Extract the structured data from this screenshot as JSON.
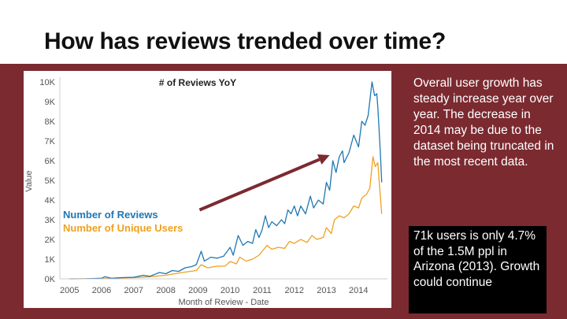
{
  "slide": {
    "title": "How has reviews trended over time?",
    "description": "Overall user growth has steady increase year over year. The decrease in 2014 may be due to the dataset being truncated in the most recent data.",
    "note": "71k users is only 4.7% of the 1.5M ppl in Arizona (2013). Growth could continue",
    "colors": {
      "band": "#7b2a30",
      "arrow": "#7b2a30",
      "note_bg": "#000000"
    }
  },
  "chart_data": {
    "type": "line",
    "title": "# of Reviews YoY",
    "xlabel": "Month of Review - Date",
    "ylabel": "Value",
    "xlim": [
      2004.7,
      2014.9
    ],
    "ylim": [
      0,
      10000
    ],
    "x_ticks": [
      "2005",
      "2006",
      "2007",
      "2008",
      "2009",
      "2010",
      "2011",
      "2012",
      "2013",
      "2014"
    ],
    "y_ticks": [
      {
        "value": 0,
        "label": "0K"
      },
      {
        "value": 1000,
        "label": "1K"
      },
      {
        "value": 2000,
        "label": "2K"
      },
      {
        "value": 3000,
        "label": "3K"
      },
      {
        "value": 4000,
        "label": "4K"
      },
      {
        "value": 5000,
        "label": "5K"
      },
      {
        "value": 6000,
        "label": "6K"
      },
      {
        "value": 7000,
        "label": "7K"
      },
      {
        "value": 8000,
        "label": "8K"
      },
      {
        "value": 9000,
        "label": "9K"
      },
      {
        "value": 10000,
        "label": "10K"
      }
    ],
    "grid": false,
    "legend_position": "middle-left",
    "series": [
      {
        "name": "Number of Reviews",
        "color": "#1f77b4",
        "points": [
          [
            2005.0,
            0
          ],
          [
            2005.5,
            5
          ],
          [
            2006.0,
            30
          ],
          [
            2006.1,
            110
          ],
          [
            2006.3,
            30
          ],
          [
            2006.6,
            60
          ],
          [
            2007.0,
            80
          ],
          [
            2007.3,
            180
          ],
          [
            2007.5,
            130
          ],
          [
            2007.8,
            320
          ],
          [
            2008.0,
            260
          ],
          [
            2008.2,
            420
          ],
          [
            2008.4,
            380
          ],
          [
            2008.6,
            560
          ],
          [
            2008.8,
            620
          ],
          [
            2008.95,
            720
          ],
          [
            2009.1,
            1400
          ],
          [
            2009.2,
            900
          ],
          [
            2009.4,
            1100
          ],
          [
            2009.6,
            1050
          ],
          [
            2009.8,
            1150
          ],
          [
            2010.0,
            1600
          ],
          [
            2010.1,
            1200
          ],
          [
            2010.25,
            2200
          ],
          [
            2010.4,
            1700
          ],
          [
            2010.55,
            1900
          ],
          [
            2010.7,
            1800
          ],
          [
            2010.8,
            2500
          ],
          [
            2010.9,
            2100
          ],
          [
            2011.0,
            2500
          ],
          [
            2011.1,
            3200
          ],
          [
            2011.2,
            2600
          ],
          [
            2011.3,
            2900
          ],
          [
            2011.45,
            2700
          ],
          [
            2011.6,
            3000
          ],
          [
            2011.7,
            2800
          ],
          [
            2011.8,
            3500
          ],
          [
            2011.9,
            3300
          ],
          [
            2012.0,
            3700
          ],
          [
            2012.1,
            3200
          ],
          [
            2012.2,
            3700
          ],
          [
            2012.35,
            3300
          ],
          [
            2012.5,
            4200
          ],
          [
            2012.6,
            3600
          ],
          [
            2012.75,
            4000
          ],
          [
            2012.9,
            3800
          ],
          [
            2013.0,
            4900
          ],
          [
            2013.1,
            4500
          ],
          [
            2013.2,
            6000
          ],
          [
            2013.3,
            5400
          ],
          [
            2013.4,
            6200
          ],
          [
            2013.5,
            6500
          ],
          [
            2013.55,
            5900
          ],
          [
            2013.7,
            6400
          ],
          [
            2013.85,
            7300
          ],
          [
            2014.0,
            6700
          ],
          [
            2014.1,
            8000
          ],
          [
            2014.2,
            7800
          ],
          [
            2014.3,
            8300
          ],
          [
            2014.42,
            10000
          ],
          [
            2014.5,
            9300
          ],
          [
            2014.57,
            9400
          ],
          [
            2014.6,
            8700
          ],
          [
            2014.68,
            6400
          ],
          [
            2014.72,
            4900
          ]
        ]
      },
      {
        "name": "Number of Unique Users",
        "color": "#f0a020",
        "points": [
          [
            2005.0,
            0
          ],
          [
            2006.0,
            15
          ],
          [
            2006.5,
            40
          ],
          [
            2007.0,
            60
          ],
          [
            2007.5,
            110
          ],
          [
            2008.0,
            180
          ],
          [
            2008.5,
            320
          ],
          [
            2008.95,
            420
          ],
          [
            2009.1,
            720
          ],
          [
            2009.3,
            560
          ],
          [
            2009.6,
            640
          ],
          [
            2009.85,
            650
          ],
          [
            2010.0,
            880
          ],
          [
            2010.2,
            760
          ],
          [
            2010.3,
            1100
          ],
          [
            2010.5,
            900
          ],
          [
            2010.7,
            1000
          ],
          [
            2010.9,
            1200
          ],
          [
            2011.0,
            1400
          ],
          [
            2011.15,
            1700
          ],
          [
            2011.3,
            1500
          ],
          [
            2011.5,
            1600
          ],
          [
            2011.7,
            1550
          ],
          [
            2011.85,
            1900
          ],
          [
            2012.0,
            1800
          ],
          [
            2012.2,
            2000
          ],
          [
            2012.4,
            1850
          ],
          [
            2012.55,
            2200
          ],
          [
            2012.7,
            2000
          ],
          [
            2012.9,
            2100
          ],
          [
            2013.0,
            2600
          ],
          [
            2013.15,
            2300
          ],
          [
            2013.25,
            3000
          ],
          [
            2013.4,
            3200
          ],
          [
            2013.55,
            3100
          ],
          [
            2013.7,
            3300
          ],
          [
            2013.85,
            3700
          ],
          [
            2014.0,
            3600
          ],
          [
            2014.1,
            4100
          ],
          [
            2014.25,
            4300
          ],
          [
            2014.35,
            4600
          ],
          [
            2014.45,
            6200
          ],
          [
            2014.52,
            5700
          ],
          [
            2014.6,
            5900
          ],
          [
            2014.65,
            4800
          ],
          [
            2014.72,
            3300
          ]
        ]
      }
    ],
    "annotations": [
      {
        "type": "arrow",
        "x1": 2009.05,
        "y1": 3500,
        "x2": 2013.1,
        "y2": 6280,
        "color": "#7b2a30"
      }
    ]
  }
}
